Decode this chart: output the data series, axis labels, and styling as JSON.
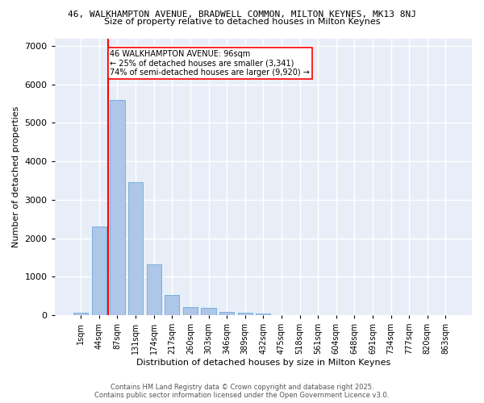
{
  "title_line1": "46, WALKHAMPTON AVENUE, BRADWELL COMMON, MILTON KEYNES, MK13 8NJ",
  "title_line2": "Size of property relative to detached houses in Milton Keynes",
  "xlabel": "Distribution of detached houses by size in Milton Keynes",
  "ylabel": "Number of detached properties",
  "categories": [
    "1sqm",
    "44sqm",
    "87sqm",
    "131sqm",
    "174sqm",
    "217sqm",
    "260sqm",
    "303sqm",
    "346sqm",
    "389sqm",
    "432sqm",
    "475sqm",
    "518sqm",
    "561sqm",
    "604sqm",
    "648sqm",
    "691sqm",
    "734sqm",
    "777sqm",
    "820sqm",
    "863sqm"
  ],
  "values": [
    60,
    2300,
    5600,
    3450,
    1320,
    520,
    205,
    185,
    90,
    60,
    30,
    0,
    0,
    0,
    0,
    0,
    0,
    0,
    0,
    0,
    0
  ],
  "bar_color": "#aec6e8",
  "bar_edge_color": "#5a9fd4",
  "vline_color": "red",
  "vline_x_index": 1.5,
  "annotation_text": "46 WALKHAMPTON AVENUE: 96sqm\n← 25% of detached houses are smaller (3,341)\n74% of semi-detached houses are larger (9,920) →",
  "box_color": "white",
  "box_edge_color": "red",
  "ylim": [
    0,
    7200
  ],
  "yticks": [
    0,
    1000,
    2000,
    3000,
    4000,
    5000,
    6000,
    7000
  ],
  "background_color": "#e8eef8",
  "grid_color": "white",
  "title1_fontsize": 8.0,
  "title2_fontsize": 8.0,
  "footer_line1": "Contains HM Land Registry data © Crown copyright and database right 2025.",
  "footer_line2": "Contains public sector information licensed under the Open Government Licence v3.0."
}
